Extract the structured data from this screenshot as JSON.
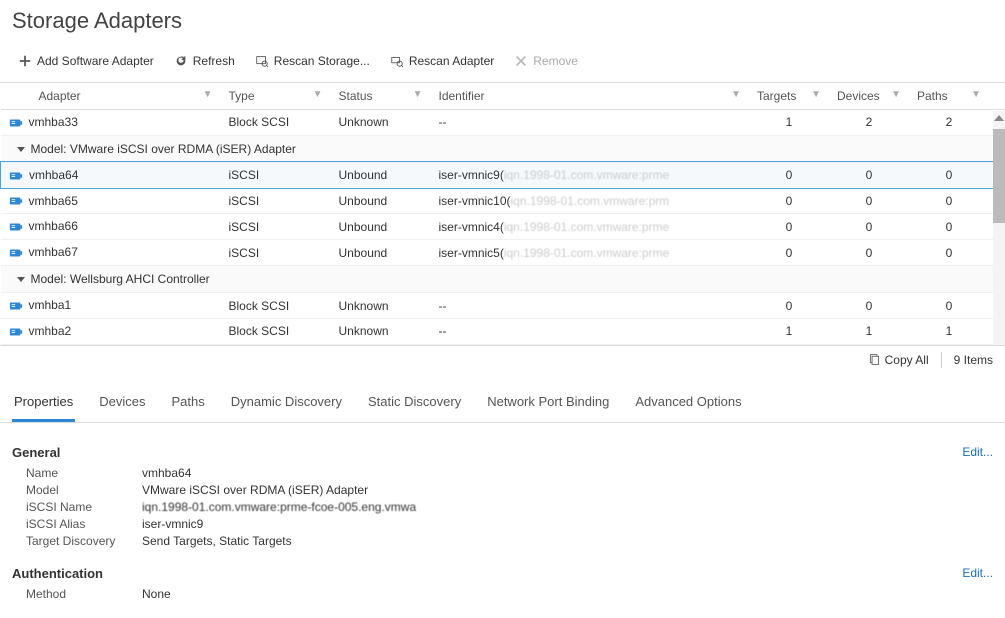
{
  "title": "Storage Adapters",
  "toolbar": {
    "add": "Add Software Adapter",
    "refresh": "Refresh",
    "rescan_storage": "Rescan Storage...",
    "rescan_adapter": "Rescan Adapter",
    "remove": "Remove"
  },
  "columns": {
    "adapter": "Adapter",
    "type": "Type",
    "status": "Status",
    "identifier": "Identifier",
    "targets": "Targets",
    "devices": "Devices",
    "paths": "Paths"
  },
  "rows": [
    {
      "kind": "data",
      "adapter": "vmhba33",
      "type": "Block SCSI",
      "status": "Unknown",
      "identifier": "--",
      "targets": "1",
      "devices": "2",
      "paths": "2"
    },
    {
      "kind": "group",
      "label": "Model: VMware iSCSI over RDMA (iSER) Adapter"
    },
    {
      "kind": "data",
      "selected": true,
      "adapter": "vmhba64",
      "type": "iSCSI",
      "status": "Unbound",
      "identifier": "iser-vmnic9(",
      "identifier_blur": "iqn.1998-01.com.vmware:prme",
      "targets": "0",
      "devices": "0",
      "paths": "0"
    },
    {
      "kind": "data",
      "adapter": "vmhba65",
      "type": "iSCSI",
      "status": "Unbound",
      "identifier": "iser-vmnic10(",
      "identifier_blur": "iqn.1998-01.com.vmware:prm",
      "targets": "0",
      "devices": "0",
      "paths": "0"
    },
    {
      "kind": "data",
      "adapter": "vmhba66",
      "type": "iSCSI",
      "status": "Unbound",
      "identifier": "iser-vmnic4(",
      "identifier_blur": "iqn.1998-01.com.vmware:prme",
      "targets": "0",
      "devices": "0",
      "paths": "0"
    },
    {
      "kind": "data",
      "adapter": "vmhba67",
      "type": "iSCSI",
      "status": "Unbound",
      "identifier": "iser-vmnic5(",
      "identifier_blur": "iqn.1998-01.com.vmware:prme",
      "targets": "0",
      "devices": "0",
      "paths": "0"
    },
    {
      "kind": "group",
      "label": "Model: Wellsburg AHCI Controller"
    },
    {
      "kind": "data",
      "adapter": "vmhba1",
      "type": "Block SCSI",
      "status": "Unknown",
      "identifier": "--",
      "targets": "0",
      "devices": "0",
      "paths": "0"
    },
    {
      "kind": "data",
      "adapter": "vmhba2",
      "type": "Block SCSI",
      "status": "Unknown",
      "identifier": "--",
      "targets": "1",
      "devices": "1",
      "paths": "1"
    }
  ],
  "footer": {
    "copy_all": "Copy All",
    "item_count": "9 Items"
  },
  "tabs": [
    "Properties",
    "Devices",
    "Paths",
    "Dynamic Discovery",
    "Static Discovery",
    "Network Port Binding",
    "Advanced Options"
  ],
  "active_tab": 0,
  "properties": {
    "general": {
      "header": "General",
      "edit": "Edit...",
      "fields": [
        {
          "label": "Name",
          "value": "vmhba64"
        },
        {
          "label": "Model",
          "value": "VMware iSCSI over RDMA (iSER) Adapter"
        },
        {
          "label": "iSCSI Name",
          "value": "iqn.1998-01.com.vmware:prme-fcoe-005.eng.vmwa",
          "blur": true
        },
        {
          "label": "iSCSI Alias",
          "value": "iser-vmnic9"
        },
        {
          "label": "Target Discovery",
          "value": "Send Targets, Static Targets"
        }
      ]
    },
    "auth": {
      "header": "Authentication",
      "edit": "Edit...",
      "fields": [
        {
          "label": "Method",
          "value": "None"
        }
      ]
    }
  },
  "colors": {
    "accent": "#2c88d6",
    "selection": "#4aa3df"
  }
}
